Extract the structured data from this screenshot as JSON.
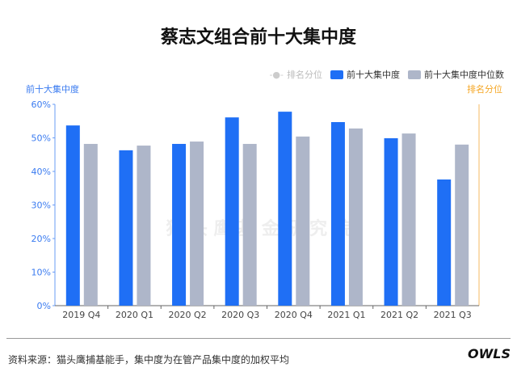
{
  "chart_data": {
    "type": "bar",
    "title": "蔡志文组合前十大集中度",
    "categories": [
      "2019 Q4",
      "2020 Q1",
      "2020 Q2",
      "2020 Q3",
      "2020 Q4",
      "2021 Q1",
      "2021 Q2",
      "2021 Q3"
    ],
    "series": [
      {
        "name": "前十大集中度",
        "color": "#1f6ff5",
        "values": [
          53.7,
          46.3,
          48.2,
          56.1,
          57.8,
          54.7,
          49.9,
          37.6
        ]
      },
      {
        "name": "前十大集中度中位数",
        "color": "#aeb6c9",
        "values": [
          48.2,
          47.7,
          48.9,
          48.2,
          50.4,
          52.8,
          51.3,
          48.0
        ]
      }
    ],
    "legend_extra": {
      "name": "排名分位",
      "color": "#cccccc"
    },
    "ylabel": "前十大集中度",
    "ylabel_right": "排名分位",
    "ylim": [
      0,
      60
    ],
    "yticks": [
      "0%",
      "10%",
      "20%",
      "30%",
      "40%",
      "50%",
      "60%"
    ],
    "legend": "top-right",
    "grid": false
  },
  "footer": {
    "source": "资料来源：猫头鹰捕基能手，集中度为在管产品集中度的加权平均",
    "logo": "OWLS"
  },
  "watermark": "猫 头 鹰 基 金 研 究 院"
}
